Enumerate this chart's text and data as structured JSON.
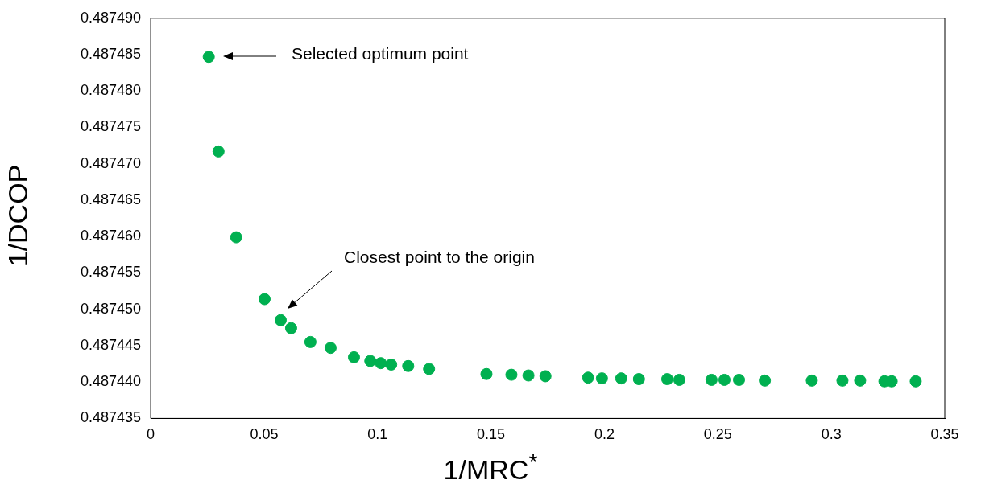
{
  "chart_data": {
    "type": "scatter",
    "xlabel": "1/MRC$^{*}$",
    "ylabel": "1/DCOP",
    "x": [
      0.0256,
      0.0299,
      0.0377,
      0.0502,
      0.0573,
      0.0619,
      0.0704,
      0.0793,
      0.0896,
      0.0968,
      0.1014,
      0.106,
      0.1135,
      0.1227,
      0.148,
      0.159,
      0.1665,
      0.174,
      0.1928,
      0.1989,
      0.2074,
      0.2152,
      0.2277,
      0.233,
      0.2472,
      0.2529,
      0.2593,
      0.2707,
      0.2914,
      0.3049,
      0.3127,
      0.3234,
      0.3266,
      0.3372
    ],
    "series": [
      {
        "color": "#00b050",
        "values": [
          0.4874847,
          0.4874717,
          0.4874599,
          0.4874514,
          0.4874485,
          0.4874474,
          0.4874455,
          0.4874447,
          0.4874434,
          0.4874429,
          0.4874426,
          0.4874424,
          0.4874422,
          0.4874418,
          0.4874411,
          0.487441,
          0.4874409,
          0.4874408,
          0.4874406,
          0.4874405,
          0.4874405,
          0.4874404,
          0.4874404,
          0.4874403,
          0.4874403,
          0.4874403,
          0.4874403,
          0.4874402,
          0.4874402,
          0.4874402,
          0.4874402,
          0.4874401,
          0.4874401,
          0.4874401
        ]
      }
    ],
    "marker": "circle",
    "grid": false,
    "legend": false,
    "xlim": [
      0,
      0.35
    ],
    "xticks": [
      0,
      0.05,
      0.1,
      0.15,
      0.2,
      0.25,
      0.3,
      0.35
    ],
    "ylim": [
      0.487435,
      0.48749
    ],
    "yticks": [
      {
        "value": 0.487435,
        "label": "0.487435"
      },
      {
        "value": 0.48744,
        "label": "0.487440"
      },
      {
        "value": 0.487445,
        "label": "0.487445"
      },
      {
        "value": 0.48745,
        "label": "0.487450"
      },
      {
        "value": 0.487455,
        "label": "0.487455"
      },
      {
        "value": 0.48746,
        "label": "0.487460"
      },
      {
        "value": 0.487465,
        "label": "0.487465"
      },
      {
        "value": 0.48747,
        "label": "0.487470"
      },
      {
        "value": 0.487475,
        "label": "0.487475"
      },
      {
        "value": 0.48748,
        "label": "0.487480"
      },
      {
        "value": 0.487485,
        "label": "0.487485"
      },
      {
        "value": 0.48749,
        "label": "0.487490"
      }
    ],
    "annotations": [
      "Selected optimum point",
      "Closest point to the origin"
    ]
  }
}
